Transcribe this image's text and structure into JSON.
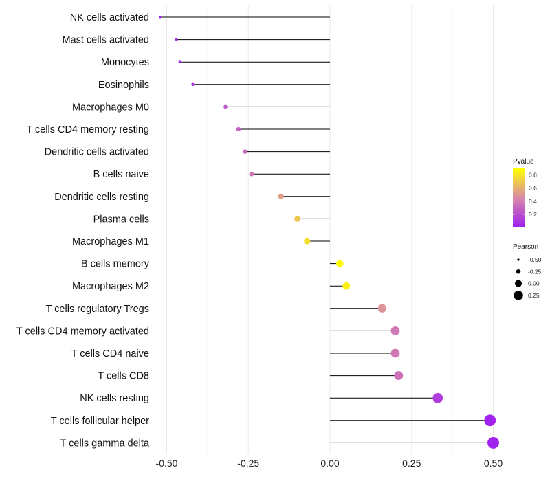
{
  "chart_data": {
    "type": "lollipop",
    "title": "",
    "xlabel": "",
    "ylabel": "",
    "xlim": [
      -0.52,
      0.52
    ],
    "x_ticks": [
      -0.5,
      -0.25,
      0.0,
      0.25,
      0.5
    ],
    "x_tick_labels": [
      "-0.50",
      "-0.25",
      "0.00",
      "0.25",
      "0.50"
    ],
    "grid": true,
    "categories": [
      "NK cells activated",
      "Mast cells activated",
      "Monocytes",
      "Eosinophils",
      "Macrophages M0",
      "T cells CD4 memory resting",
      "Dendritic cells activated",
      "B cells naive",
      "Dendritic cells resting",
      "Plasma cells",
      "Macrophages M1",
      "B cells memory",
      "Macrophages M2",
      "T cells regulatory  Tregs",
      "T cells CD4 memory activated",
      "T cells CD4 naive",
      "T cells CD8",
      "NK cells resting",
      "T cells follicular helper",
      "T cells gamma delta"
    ],
    "pearson": [
      -0.52,
      -0.47,
      -0.46,
      -0.42,
      -0.32,
      -0.28,
      -0.26,
      -0.24,
      -0.15,
      -0.1,
      -0.07,
      0.03,
      0.05,
      0.16,
      0.2,
      0.2,
      0.21,
      0.33,
      0.49,
      0.5
    ],
    "pvalue": [
      0.01,
      0.02,
      0.03,
      0.08,
      0.22,
      0.29,
      0.33,
      0.37,
      0.54,
      0.69,
      0.78,
      0.89,
      0.84,
      0.49,
      0.38,
      0.38,
      0.35,
      0.12,
      0.01,
      0.01
    ],
    "legend_color": {
      "title": "Pvalue",
      "ticks": [
        0.2,
        0.4,
        0.6,
        0.8
      ],
      "tick_labels": [
        "0.2",
        "0.4",
        "0.6",
        "0.8"
      ],
      "range": [
        0.0,
        0.9
      ],
      "low_color": "#a020f0",
      "mid_color": "#d988a8",
      "high_color": "#ffff00"
    },
    "legend_size": {
      "title": "Pearson",
      "values": [
        -0.5,
        -0.25,
        0.0,
        0.25
      ],
      "labels": [
        "-0.50",
        "-0.25",
        "0.00",
        "0.25"
      ]
    },
    "legend_position": "right"
  }
}
